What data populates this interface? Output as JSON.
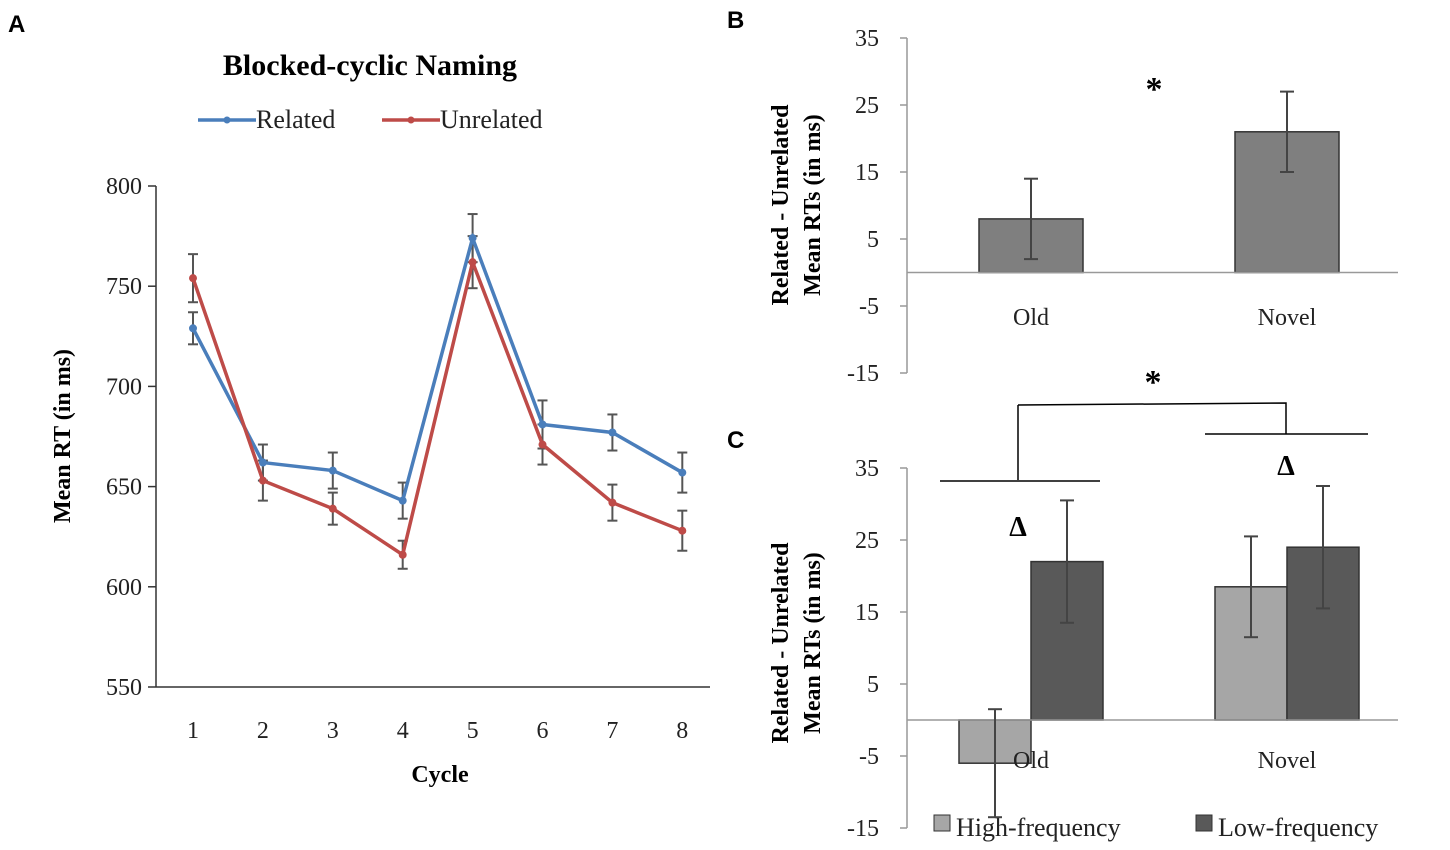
{
  "chart_data": [
    {
      "panel": "A",
      "type": "line",
      "title": "Blocked-cyclic Naming",
      "xlabel": "Cycle",
      "ylabel": "Mean RT (in ms)",
      "categories": [
        "1",
        "2",
        "3",
        "4",
        "5",
        "6",
        "7",
        "8"
      ],
      "yticks": [
        "550",
        "600",
        "650",
        "700",
        "750",
        "800"
      ],
      "ylim": [
        550,
        800
      ],
      "legend_position": "top",
      "series": [
        {
          "name": "Related",
          "color": "#4a7ebb",
          "values": [
            729,
            662,
            658,
            643,
            774,
            681,
            677,
            657
          ],
          "errors": [
            8,
            9,
            9,
            9,
            12,
            12,
            9,
            10
          ]
        },
        {
          "name": "Unrelated",
          "color": "#be4b48",
          "values": [
            754,
            653,
            639,
            616,
            762,
            671,
            642,
            628
          ],
          "errors": [
            12,
            10,
            8,
            7,
            13,
            10,
            9,
            10
          ]
        }
      ]
    },
    {
      "panel": "B",
      "type": "bar",
      "ylabel_line1": "Related - Unrelated",
      "ylabel_line2": "Mean RTs (in ms)",
      "categories": [
        "Old",
        "Novel"
      ],
      "yticks": [
        "35",
        "25",
        "15",
        "5",
        "-5",
        "-15"
      ],
      "ylim": [
        -15,
        35
      ],
      "bar_color": "#7f7f7f",
      "values": [
        8,
        21
      ],
      "errors": [
        6,
        6
      ],
      "significance": "*"
    },
    {
      "panel": "C",
      "type": "bar",
      "ylabel_line1": "Related - Unrelated",
      "ylabel_line2": "Mean RTs (in ms)",
      "categories": [
        "Old",
        "Novel"
      ],
      "yticks": [
        "35",
        "25",
        "15",
        "5",
        "-5",
        "-15"
      ],
      "ylim": [
        -15,
        35
      ],
      "series": [
        {
          "name": "High-frequency",
          "color": "#a6a6a6",
          "values": [
            -6,
            18.5
          ],
          "errors": [
            7.5,
            7
          ]
        },
        {
          "name": "Low-frequency",
          "color": "#595959",
          "values": [
            22,
            24
          ],
          "errors": [
            8.5,
            8.5
          ]
        }
      ],
      "significance": "*",
      "delta_marker": "Δ",
      "legend_position": "bottom"
    }
  ]
}
